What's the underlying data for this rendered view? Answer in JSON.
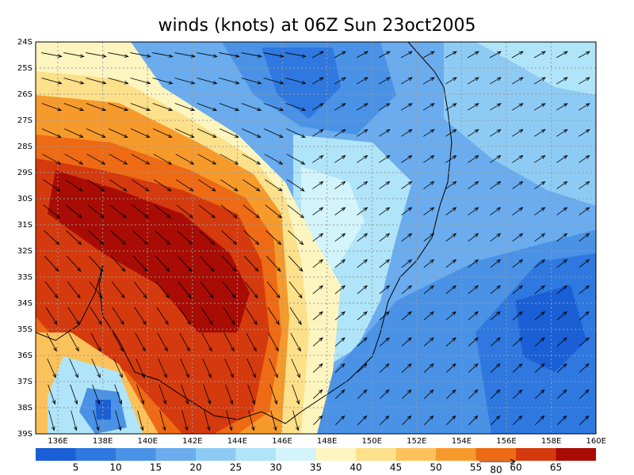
{
  "title": "winds (knots) at 06Z Sun 23oct2005",
  "map": {
    "lat_labels": [
      "24S",
      "25S",
      "26S",
      "27S",
      "28S",
      "29S",
      "30S",
      "31S",
      "32S",
      "33S",
      "34S",
      "35S",
      "36S",
      "37S",
      "38S",
      "39S"
    ],
    "lon_labels": [
      "136E",
      "138E",
      "140E",
      "142E",
      "144E",
      "146E",
      "148E",
      "150E",
      "152E",
      "154E",
      "156E",
      "158E",
      "160E"
    ]
  },
  "colorbar": {
    "labels": [
      5,
      10,
      15,
      20,
      25,
      30,
      35,
      40,
      45,
      50,
      55,
      60,
      65
    ],
    "colors": [
      "#1a5fd6",
      "#2e78e0",
      "#4a92e6",
      "#6aacee",
      "#8ecbf4",
      "#b0e4f8",
      "#d2f4fa",
      "#fdf5c0",
      "#fde08a",
      "#fbc25c",
      "#f79a2c",
      "#ee6a14",
      "#d43a0e",
      "#a80c04"
    ]
  },
  "reference_vector": {
    "label": 80
  }
}
